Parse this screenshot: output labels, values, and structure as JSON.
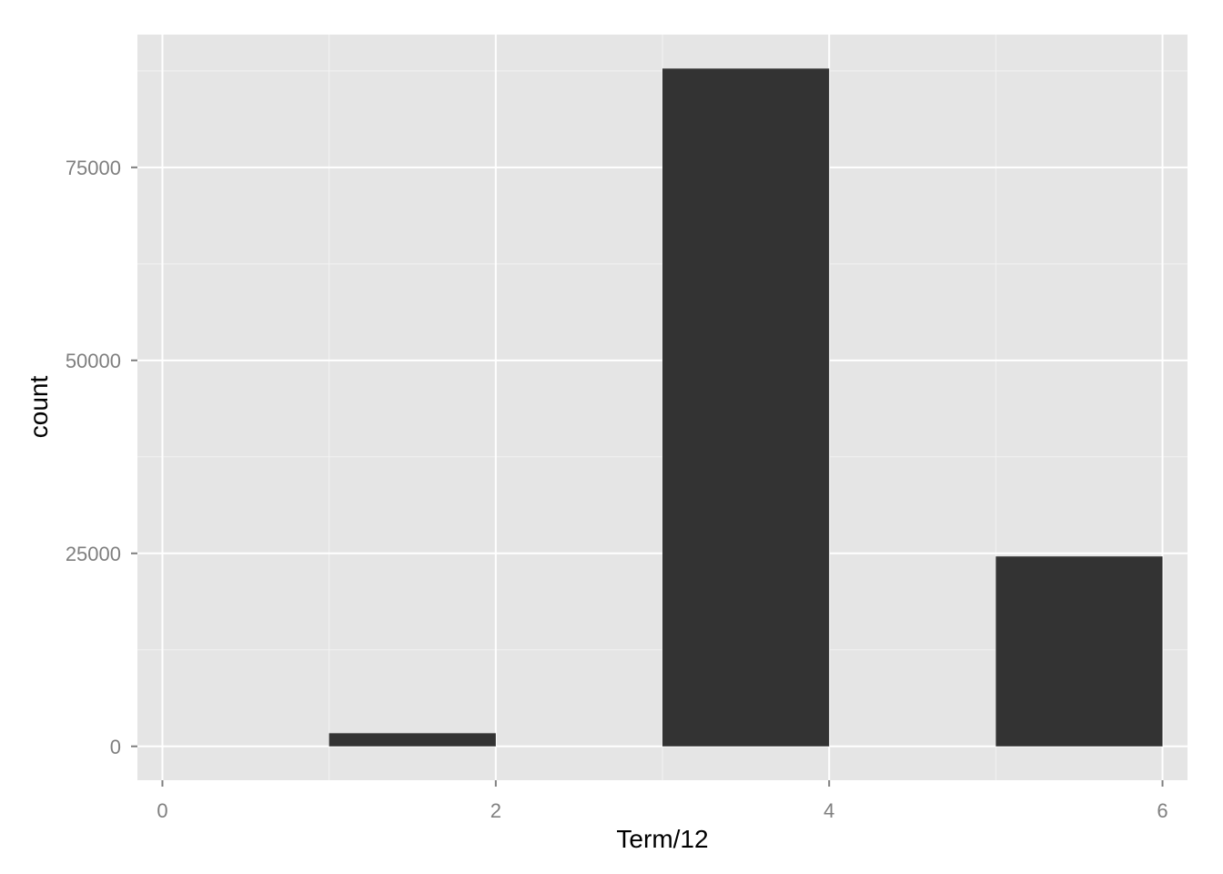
{
  "chart_data": {
    "type": "bar",
    "bins": [
      {
        "x_start": 1,
        "x_end": 2,
        "count": 1700
      },
      {
        "x_start": 3,
        "x_end": 4,
        "count": 87800
      },
      {
        "x_start": 5,
        "x_end": 6,
        "count": 24600
      }
    ],
    "xlabel": "Term/12",
    "ylabel": "count",
    "x_ticks": [
      0,
      2,
      4,
      6
    ],
    "x_minor_ticks": [
      1,
      3,
      5
    ],
    "y_ticks": [
      0,
      25000,
      50000,
      75000
    ],
    "y_minor_ticks": [
      12500,
      37500,
      62500,
      87500
    ],
    "xlim": [
      -0.15,
      6.15
    ],
    "ylim": [
      -4390,
      92200
    ],
    "grid": true,
    "colors": {
      "panel_bg": "#e5e5e5",
      "grid_major": "#ffffff",
      "grid_minor": "#f2f2f2",
      "bar_fill": "#333333",
      "tick_text": "#7f7f7f",
      "tick_mark": "#7f7f7f"
    }
  }
}
